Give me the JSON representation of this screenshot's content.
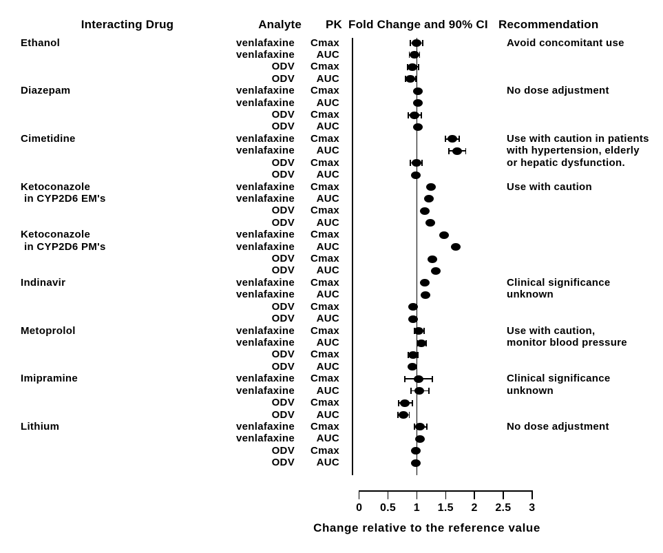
{
  "chart_data": {
    "type": "forest",
    "title": "PK Fold Change and 90% CI",
    "columns": {
      "interacting_drug": "Interacting Drug",
      "analyte": "Analyte",
      "pk": "PK",
      "plot": "Fold Change and 90% CI",
      "recommendation": "Recommendation"
    },
    "x_axis": {
      "label": "Change relative to the reference value",
      "tick_labels": [
        "0",
        "0.5",
        "1",
        "1.5",
        "2",
        "2.5",
        "3"
      ],
      "range": [
        0,
        3
      ],
      "reference_value": 1,
      "grid": false
    },
    "groups": [
      {
        "drug": [
          "Ethanol"
        ],
        "recommendation": [
          "Avoid concomitant use"
        ],
        "rows": [
          {
            "analyte": "venlafaxine",
            "pk": "Cmax",
            "value": 0.99,
            "ci": [
              0.89,
              1.1
            ]
          },
          {
            "analyte": "venlafaxine",
            "pk": "AUC",
            "value": 0.96,
            "ci": [
              0.87,
              1.05
            ]
          },
          {
            "analyte": "ODV",
            "pk": "Cmax",
            "value": 0.92,
            "ci": [
              0.84,
              1.03
            ]
          },
          {
            "analyte": "ODV",
            "pk": "AUC",
            "value": 0.89,
            "ci": [
              0.8,
              0.98
            ]
          }
        ]
      },
      {
        "drug": [
          "Diazepam"
        ],
        "recommendation": [
          "No dose adjustment"
        ],
        "rows": [
          {
            "analyte": "venlafaxine",
            "pk": "Cmax",
            "value": 1.02,
            "ci": null
          },
          {
            "analyte": "venlafaxine",
            "pk": "AUC",
            "value": 1.02,
            "ci": null
          },
          {
            "analyte": "ODV",
            "pk": "Cmax",
            "value": 0.96,
            "ci": [
              0.85,
              1.08
            ]
          },
          {
            "analyte": "ODV",
            "pk": "AUC",
            "value": 1.02,
            "ci": null
          }
        ]
      },
      {
        "drug": [
          "Cimetidine"
        ],
        "recommendation": [
          "Use with caution in patients",
          "with hypertension, elderly",
          "or hepatic dysfunction."
        ],
        "rows": [
          {
            "analyte": "venlafaxine",
            "pk": "Cmax",
            "value": 1.62,
            "ci": [
              1.5,
              1.74
            ]
          },
          {
            "analyte": "venlafaxine",
            "pk": "AUC",
            "value": 1.7,
            "ci": [
              1.56,
              1.85
            ]
          },
          {
            "analyte": "ODV",
            "pk": "Cmax",
            "value": 1.0,
            "ci": [
              0.89,
              1.09
            ]
          },
          {
            "analyte": "ODV",
            "pk": "AUC",
            "value": 0.98,
            "ci": null
          }
        ]
      },
      {
        "drug": [
          "Ketoconazole",
          "in CYP2D6 EM's"
        ],
        "recommendation": [
          "Use with caution"
        ],
        "rows": [
          {
            "analyte": "venlafaxine",
            "pk": "Cmax",
            "value": 1.25,
            "ci": null
          },
          {
            "analyte": "venlafaxine",
            "pk": "AUC",
            "value": 1.21,
            "ci": null
          },
          {
            "analyte": "ODV",
            "pk": "Cmax",
            "value": 1.14,
            "ci": null
          },
          {
            "analyte": "ODV",
            "pk": "AUC",
            "value": 1.23,
            "ci": null
          }
        ]
      },
      {
        "drug": [
          "Ketoconazole",
          "in CYP2D6 PM's"
        ],
        "recommendation": [],
        "rows": [
          {
            "analyte": "venlafaxine",
            "pk": "Cmax",
            "value": 1.47,
            "ci": null
          },
          {
            "analyte": "venlafaxine",
            "pk": "AUC",
            "value": 1.68,
            "ci": null
          },
          {
            "analyte": "ODV",
            "pk": "Cmax",
            "value": 1.27,
            "ci": null
          },
          {
            "analyte": "ODV",
            "pk": "AUC",
            "value": 1.33,
            "ci": null
          }
        ]
      },
      {
        "drug": [
          "Indinavir"
        ],
        "recommendation": [
          "Clinical significance",
          "unknown"
        ],
        "rows": [
          {
            "analyte": "venlafaxine",
            "pk": "Cmax",
            "value": 1.14,
            "ci": null
          },
          {
            "analyte": "venlafaxine",
            "pk": "AUC",
            "value": 1.15,
            "ci": null
          },
          {
            "analyte": "ODV",
            "pk": "Cmax",
            "value": 0.94,
            "ci": null
          },
          {
            "analyte": "ODV",
            "pk": "AUC",
            "value": 0.94,
            "ci": null
          }
        ]
      },
      {
        "drug": [
          "Metoprolol"
        ],
        "recommendation": [
          "Use with caution,",
          "monitor blood pressure"
        ],
        "rows": [
          {
            "analyte": "venlafaxine",
            "pk": "Cmax",
            "value": 1.03,
            "ci": [
              0.96,
              1.13
            ]
          },
          {
            "analyte": "venlafaxine",
            "pk": "AUC",
            "value": 1.08,
            "ci": [
              1.01,
              1.16
            ]
          },
          {
            "analyte": "ODV",
            "pk": "Cmax",
            "value": 0.93,
            "ci": [
              0.85,
              1.02
            ]
          },
          {
            "analyte": "ODV",
            "pk": "AUC",
            "value": 0.92,
            "ci": null
          }
        ]
      },
      {
        "drug": [
          "Imipramine"
        ],
        "recommendation": [
          "Clinical significance",
          "unknown"
        ],
        "rows": [
          {
            "analyte": "venlafaxine",
            "pk": "Cmax",
            "value": 1.03,
            "ci": [
              0.79,
              1.27
            ]
          },
          {
            "analyte": "venlafaxine",
            "pk": "AUC",
            "value": 1.04,
            "ci": [
              0.9,
              1.21
            ]
          },
          {
            "analyte": "ODV",
            "pk": "Cmax",
            "value": 0.79,
            "ci": [
              0.68,
              0.92
            ]
          },
          {
            "analyte": "ODV",
            "pk": "AUC",
            "value": 0.77,
            "ci": [
              0.67,
              0.87
            ]
          }
        ]
      },
      {
        "drug": [
          "Lithium"
        ],
        "recommendation": [
          "No dose adjustment"
        ],
        "rows": [
          {
            "analyte": "venlafaxine",
            "pk": "Cmax",
            "value": 1.05,
            "ci": [
              0.96,
              1.17
            ]
          },
          {
            "analyte": "venlafaxine",
            "pk": "AUC",
            "value": 1.05,
            "ci": null
          },
          {
            "analyte": "ODV",
            "pk": "Cmax",
            "value": 0.98,
            "ci": null
          },
          {
            "analyte": "ODV",
            "pk": "AUC",
            "value": 0.98,
            "ci": null
          }
        ]
      }
    ]
  }
}
